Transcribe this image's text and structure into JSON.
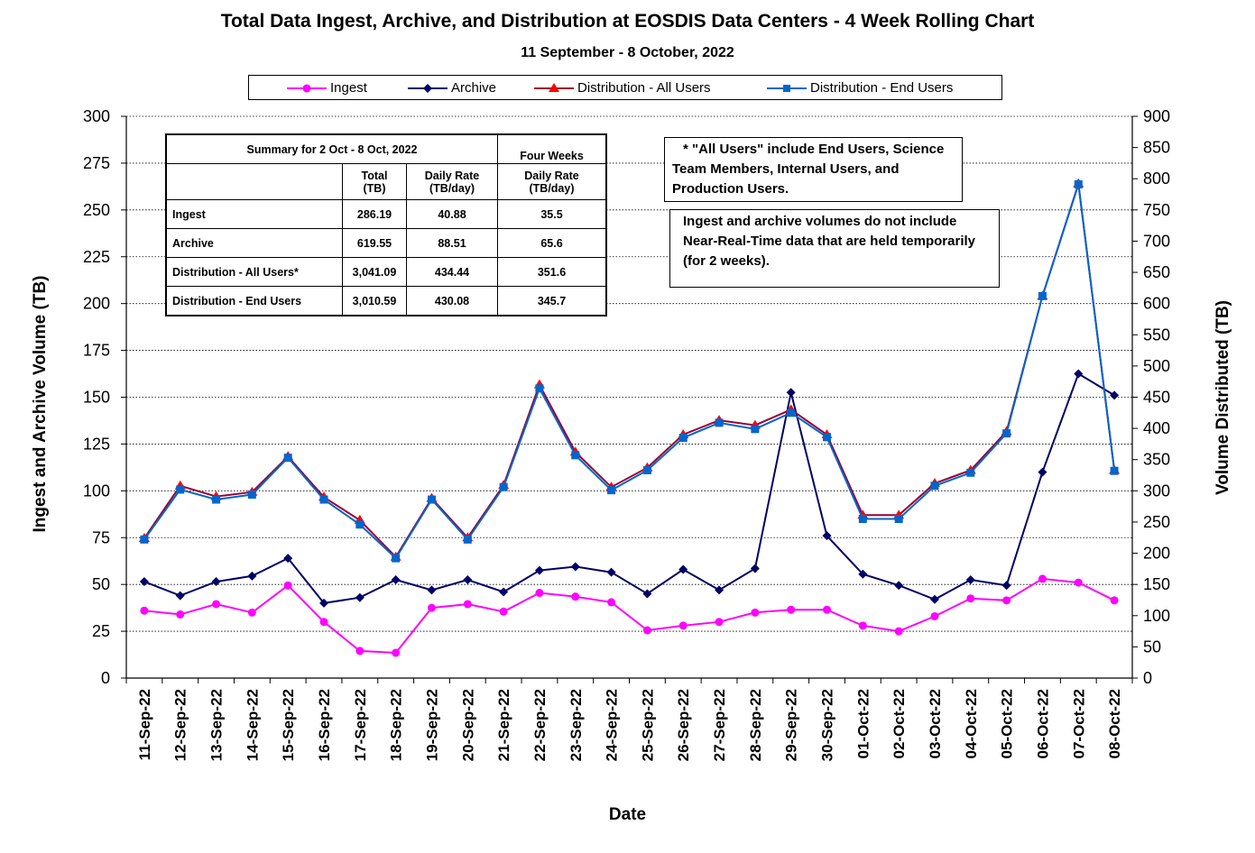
{
  "chart_title": "Total Data Ingest, Archive, and  Distribution at EOSDIS Data Centers - 4 Week Rolling Chart",
  "chart_subtitle": "11  September   -  8  October,  2022",
  "legend": {
    "ingest": "Ingest",
    "archive": "Archive",
    "dist_all": "Distribution - All Users",
    "dist_end": "Distribution - End Users"
  },
  "summary": {
    "title": "Summary  for  2  Oct   -  8  Oct,  2022",
    "four_weeks": "Four Weeks",
    "col_total": "Total",
    "col_total_unit": "(TB)",
    "col_daily": "Daily Rate",
    "col_daily_unit": "(TB/day)",
    "col_4w_daily": "Daily Rate",
    "col_4w_daily_unit": "(TB/day)",
    "rows": [
      {
        "label": "Ingest",
        "total": "286.19",
        "daily": "40.88",
        "four_weeks": "35.5"
      },
      {
        "label": "Archive",
        "total": "619.55",
        "daily": "88.51",
        "four_weeks": "65.6"
      },
      {
        "label": "Distribution - All Users*",
        "total": "3,041.09",
        "daily": "434.44",
        "four_weeks": "351.6"
      },
      {
        "label": "Distribution - End Users",
        "total": "3,010.59",
        "daily": "430.08",
        "four_weeks": "345.7"
      }
    ]
  },
  "notes": {
    "note1": "* \"All Users\" include End Users, Science Team Members,  Internal Users, and Production Users.",
    "note2": "Ingest and archive volumes do not include Near-Real-Time data that are held temporarily (for 2 weeks)."
  },
  "colors": {
    "ingest": "#ff00ff",
    "archive": "#000066",
    "dist_all": "#ff0000",
    "dist_all_line": "#990033",
    "dist_end": "#0066cc"
  },
  "chart_data": {
    "type": "line",
    "title": "Total Data Ingest, Archive, and  Distribution at EOSDIS Data Centers - 4 Week Rolling Chart",
    "subtitle": "11  September   -  8  October,  2022",
    "xlabel": "Date",
    "ylabel_left": "Ingest and Archive Volume (TB)",
    "ylabel_right": "Volume Distributed (TB)",
    "ylim_left": [
      0,
      300
    ],
    "ylim_right": [
      0,
      900
    ],
    "yticks_left": [
      0,
      25,
      50,
      75,
      100,
      125,
      150,
      175,
      200,
      225,
      250,
      275,
      300
    ],
    "yticks_right": [
      0,
      50,
      100,
      150,
      200,
      250,
      300,
      350,
      400,
      450,
      500,
      550,
      600,
      650,
      700,
      750,
      800,
      850,
      900
    ],
    "grid": true,
    "legend_position": "top",
    "categories": [
      "11-Sep-22",
      "12-Sep-22",
      "13-Sep-22",
      "14-Sep-22",
      "15-Sep-22",
      "16-Sep-22",
      "17-Sep-22",
      "18-Sep-22",
      "19-Sep-22",
      "20-Sep-22",
      "21-Sep-22",
      "22-Sep-22",
      "23-Sep-22",
      "24-Sep-22",
      "25-Sep-22",
      "26-Sep-22",
      "27-Sep-22",
      "28-Sep-22",
      "29-Sep-22",
      "30-Sep-22",
      "01-Oct-22",
      "02-Oct-22",
      "03-Oct-22",
      "04-Oct-22",
      "05-Oct-22",
      "06-Oct-22",
      "07-Oct-22",
      "08-Oct-22"
    ],
    "series": [
      {
        "name": "Ingest",
        "axis": "left",
        "color": "#ff00ff",
        "marker": "circle",
        "values": [
          36,
          34,
          39.5,
          35,
          49.5,
          30,
          14.5,
          13.5,
          37.5,
          39.5,
          35.5,
          45.5,
          43.5,
          40.5,
          25.5,
          28,
          30,
          35,
          36.5,
          36.5,
          28,
          25,
          33,
          42.5,
          41.5,
          53,
          51,
          41.5
        ]
      },
      {
        "name": "Archive",
        "axis": "left",
        "color": "#000066",
        "marker": "diamond",
        "values": [
          51.5,
          44,
          51.5,
          54.5,
          64,
          40,
          43,
          52.5,
          47,
          52.5,
          46,
          57.5,
          59.5,
          56.5,
          45,
          58,
          47,
          58.5,
          152.5,
          76,
          55.5,
          49.5,
          42,
          52.5,
          49.5,
          110,
          162.5,
          151
        ]
      },
      {
        "name": "Distribution - All Users",
        "axis": "right",
        "color": "#ff0000",
        "marker": "triangle",
        "values": [
          224,
          308,
          291,
          298,
          355,
          290,
          253,
          194,
          288,
          225,
          309,
          470,
          362,
          306,
          337,
          390,
          413,
          405,
          430,
          390,
          261,
          261,
          312,
          333,
          395,
          612,
          792,
          333
        ]
      },
      {
        "name": "Distribution - End Users",
        "axis": "right",
        "color": "#0066cc",
        "marker": "square",
        "values": [
          222,
          302,
          286,
          294,
          353,
          286,
          246,
          192,
          286,
          222,
          306,
          464,
          357,
          301,
          333,
          385,
          409,
          399,
          425,
          386,
          255,
          255,
          308,
          329,
          392,
          612,
          791,
          332
        ]
      }
    ]
  }
}
